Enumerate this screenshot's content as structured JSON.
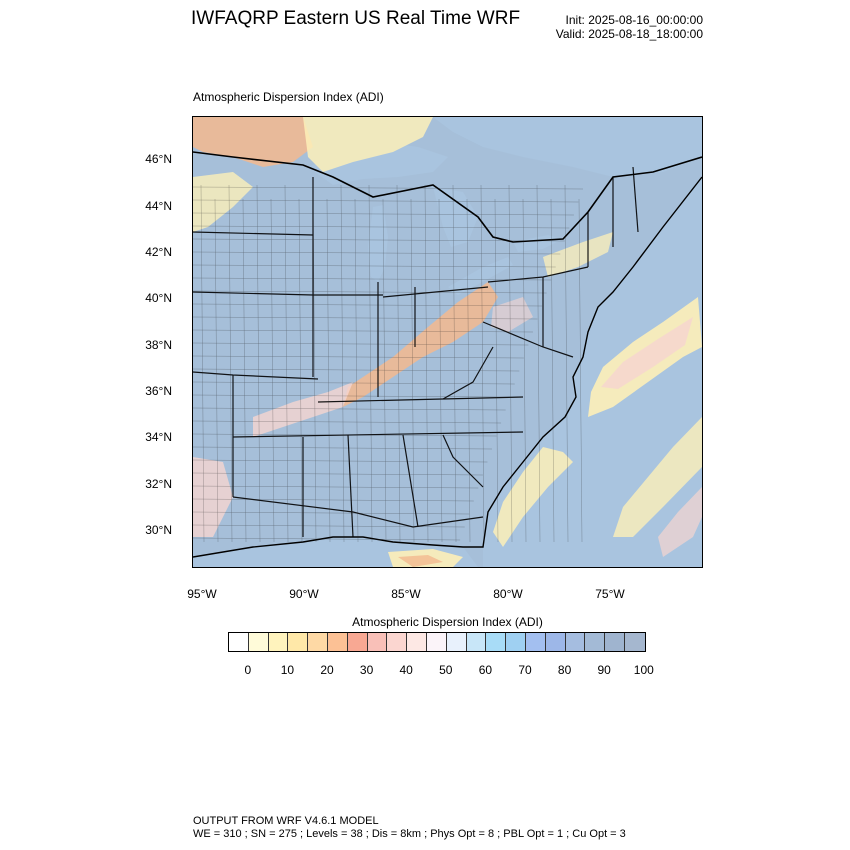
{
  "header": {
    "title": "IWFAQRP Eastern US Real Time WRF",
    "init": "Init: 2025-08-16_00:00:00",
    "valid": "Valid: 2025-08-18_18:00:00"
  },
  "panel": {
    "title": "Atmospheric Dispersion Index   (ADI)"
  },
  "map": {
    "lat_labels": [
      "46°N",
      "44°N",
      "42°N",
      "40°N",
      "38°N",
      "36°N",
      "34°N",
      "32°N",
      "30°N"
    ],
    "lon_labels": [
      "95°W",
      "90°W",
      "85°W",
      "80°W",
      "75°W"
    ],
    "colors": {
      "water": "#a9c4df",
      "land_high": "#a6bfd9",
      "low_orange": "#f3b98e",
      "light_yellow": "#fdf0b8",
      "mid_pink": "#f6d6cf",
      "borders": "#000000"
    }
  },
  "colorbar": {
    "title": "Atmospheric Dispersion Index  (ADI)",
    "colors": [
      "#ffffff",
      "#fffbd9",
      "#fff3bd",
      "#ffe8a8",
      "#fed9a5",
      "#fcc195",
      "#f8a893",
      "#f9c0b8",
      "#fbd6d0",
      "#fde8e4",
      "#fbf4f9",
      "#e8f1fc",
      "#c8e6f8",
      "#a8dcf7",
      "#9fd0f2",
      "#a3bff0",
      "#9db7e8",
      "#a5bde0",
      "#a3bad6",
      "#9fb4cf",
      "#a5b7cf"
    ],
    "ticks": [
      "0",
      "10",
      "20",
      "30",
      "40",
      "50",
      "60",
      "70",
      "80",
      "90",
      "100"
    ]
  },
  "footer": {
    "line1": "OUTPUT FROM WRF V4.6.1 MODEL",
    "line2": "WE = 310 ; SN = 275 ; Levels = 38 ; Dis = 8km ; Phys Opt = 8 ; PBL Opt = 1 ; Cu Opt = 3"
  }
}
